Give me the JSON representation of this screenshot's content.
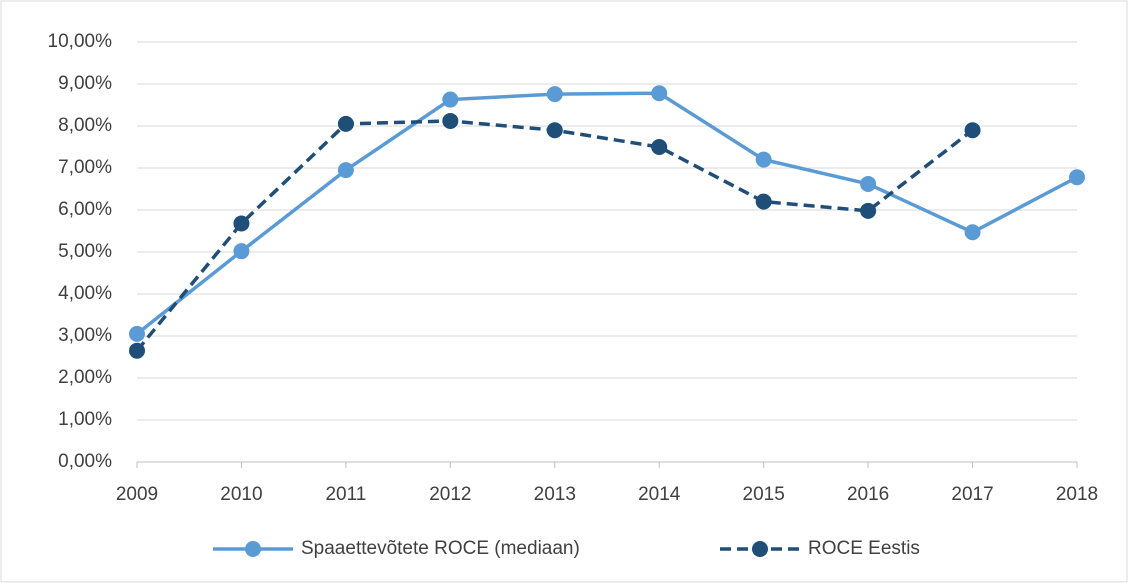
{
  "chart_data": {
    "type": "line",
    "categories": [
      "2009",
      "2010",
      "2011",
      "2012",
      "2013",
      "2014",
      "2015",
      "2016",
      "2017",
      "2018"
    ],
    "series": [
      {
        "name": "Spaaettevõtete ROCE (mediaan)",
        "color": "#5b9bd5",
        "dash": false,
        "values": [
          3.05,
          5.02,
          6.95,
          8.63,
          8.76,
          8.78,
          7.2,
          6.62,
          5.47,
          6.78
        ]
      },
      {
        "name": "ROCE Eestis",
        "color": "#1f4e79",
        "dash": true,
        "values": [
          2.65,
          5.68,
          8.05,
          8.12,
          7.9,
          7.5,
          6.2,
          5.98,
          7.9,
          null
        ]
      }
    ],
    "ylim": [
      0,
      10
    ],
    "yticks": [
      {
        "value": 0,
        "label": "0,00%"
      },
      {
        "value": 1,
        "label": "1,00%"
      },
      {
        "value": 2,
        "label": "2,00%"
      },
      {
        "value": 3,
        "label": "3,00%"
      },
      {
        "value": 4,
        "label": "4,00%"
      },
      {
        "value": 5,
        "label": "5,00%"
      },
      {
        "value": 6,
        "label": "6,00%"
      },
      {
        "value": 7,
        "label": "7,00%"
      },
      {
        "value": 8,
        "label": "8,00%"
      },
      {
        "value": 9,
        "label": "9,00%"
      },
      {
        "value": 10,
        "label": "10,00%"
      }
    ],
    "grid": true,
    "legend": "bottom"
  }
}
